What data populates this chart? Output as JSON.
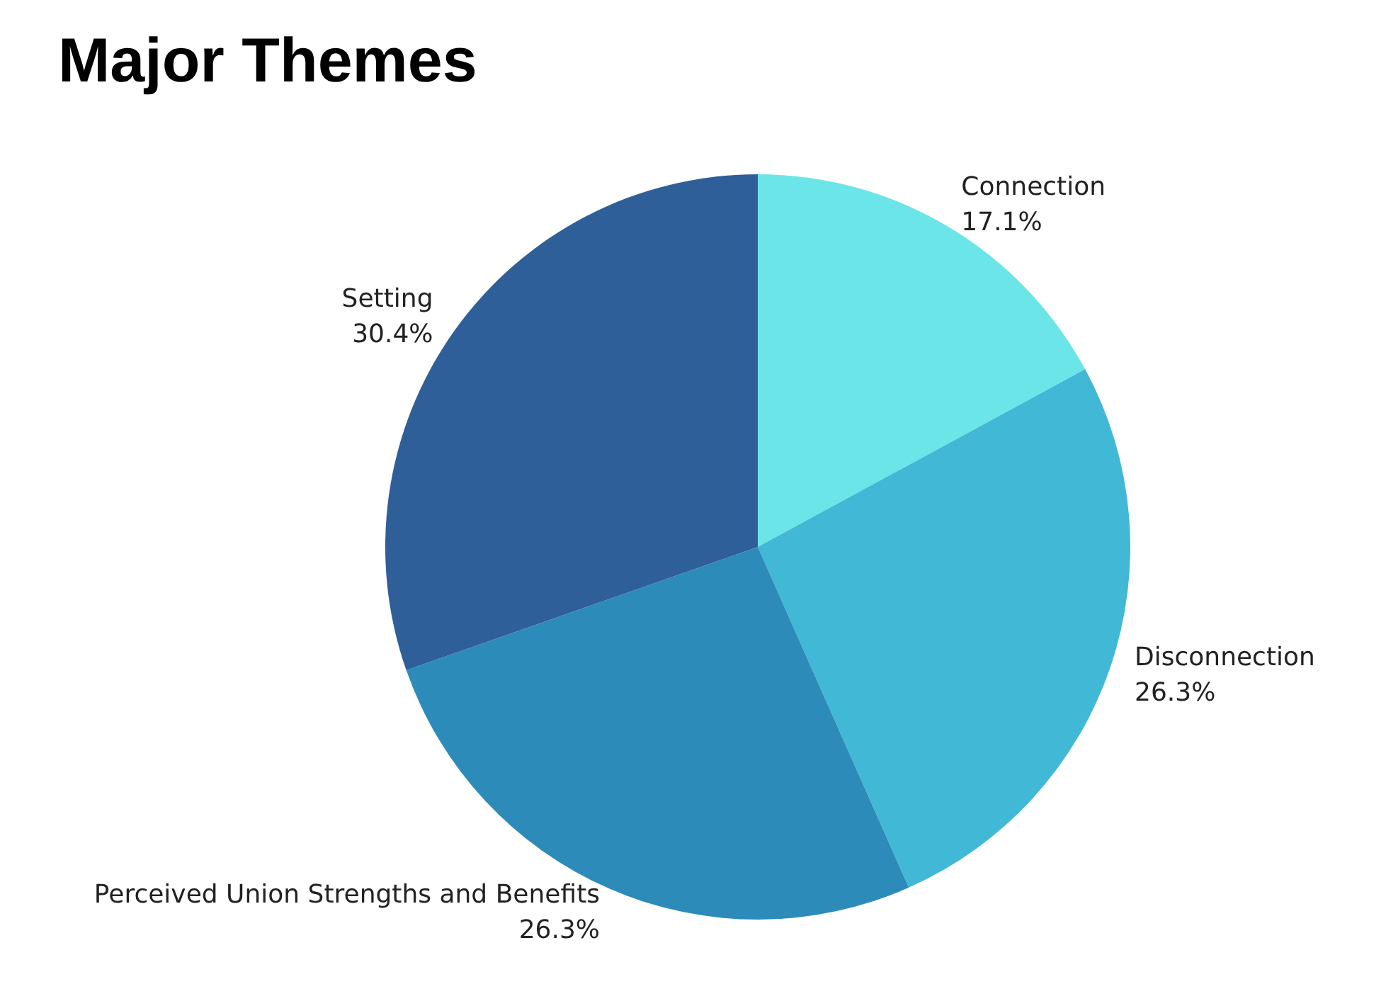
{
  "chart_data": {
    "type": "pie",
    "title": "Major Themes",
    "categories": [
      "Connection",
      "Disconnection",
      "Perceived Union Strengths and Benefits",
      "Setting"
    ],
    "values": [
      17.1,
      26.3,
      26.3,
      30.4
    ],
    "colors": [
      "#6ce5e8",
      "#41b8d5",
      "#2d8bba",
      "#2f5f98"
    ],
    "value_labels": [
      "17.1%",
      "26.3%",
      "26.3%",
      "30.4%"
    ]
  }
}
